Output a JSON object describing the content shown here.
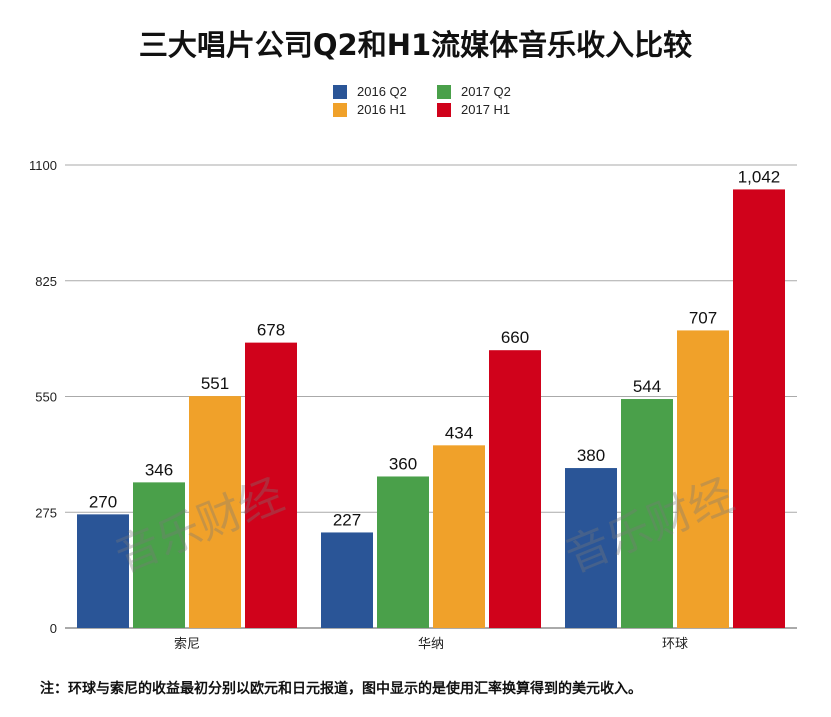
{
  "chart_data": {
    "type": "bar",
    "title": "三大唱片公司Q2和H1流媒体音乐收入比较",
    "categories": [
      "索尼",
      "华纳",
      "环球"
    ],
    "series": [
      {
        "name": "2016 Q2",
        "color": "#2a5597",
        "values": [
          270,
          227,
          380
        ],
        "labels": [
          "270",
          "227",
          "380"
        ]
      },
      {
        "name": "2017 Q2",
        "color": "#4aa04a",
        "values": [
          346,
          360,
          544
        ],
        "labels": [
          "346",
          "360",
          "544"
        ]
      },
      {
        "name": "2016 H1",
        "color": "#f0a12a",
        "values": [
          551,
          434,
          707
        ],
        "labels": [
          "551",
          "434",
          "707"
        ]
      },
      {
        "name": "2017 H1",
        "color": "#d0021b",
        "values": [
          678,
          660,
          1042
        ],
        "labels": [
          "678",
          "660",
          "1,042"
        ]
      }
    ],
    "yticks": [
      "0",
      "275",
      "550",
      "825",
      "1100"
    ],
    "ytick_values": [
      0,
      275,
      550,
      825,
      1100
    ],
    "ylim": [
      0,
      1100
    ],
    "grid": true,
    "legend_position": "top-center",
    "xlabel": "",
    "ylabel": ""
  },
  "note": "注：环球与索尼的收益最初分别以欧元和日元报道，图中显示的是使用汇率换算得到的美元收入。",
  "watermark": "音乐财经"
}
